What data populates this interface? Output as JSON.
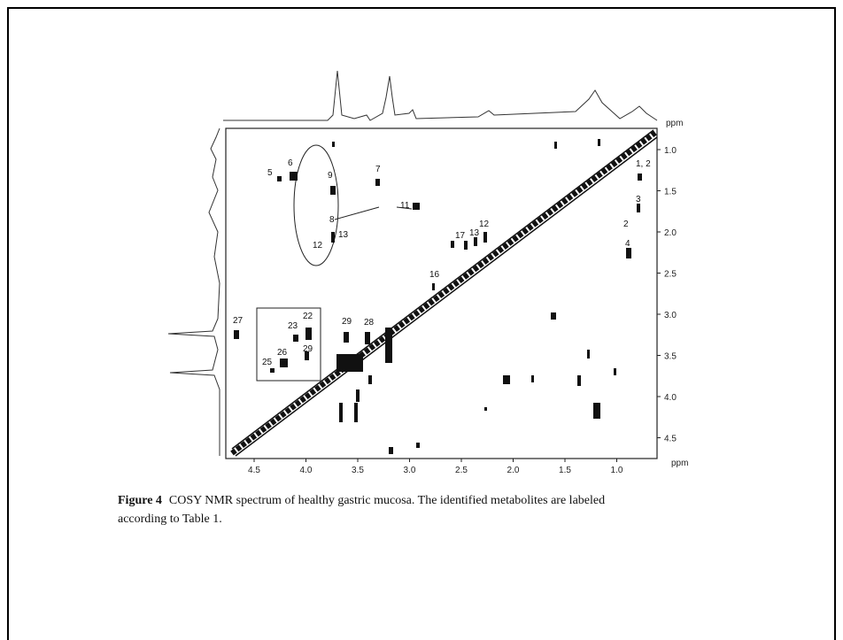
{
  "figure": {
    "x_axis": {
      "ticks": [
        "4.5",
        "4.0",
        "3.5",
        "3.0",
        "2.5",
        "2.0",
        "1.5",
        "1.0"
      ],
      "unit": "ppm"
    },
    "y_axis": {
      "ticks": [
        "1.0",
        "1.5",
        "2.0",
        "2.5",
        "3.0",
        "3.5",
        "4.0",
        "4.5"
      ],
      "unit": "ppm"
    },
    "top_unit": "ppm",
    "peak_labels": [
      "5",
      "6",
      "9",
      "7",
      "11",
      "8",
      "13",
      "12",
      "1, 2",
      "3",
      "2",
      "4",
      "17",
      "13",
      "12",
      "16",
      "27",
      "22",
      "23",
      "29",
      "26",
      "25",
      "29",
      "28"
    ],
    "caption": {
      "label": "Figure 4",
      "text": "COSY NMR spectrum of healthy gastric mucosa. The identified metabolites are labeled",
      "text_line2": "according to Table 1."
    }
  }
}
